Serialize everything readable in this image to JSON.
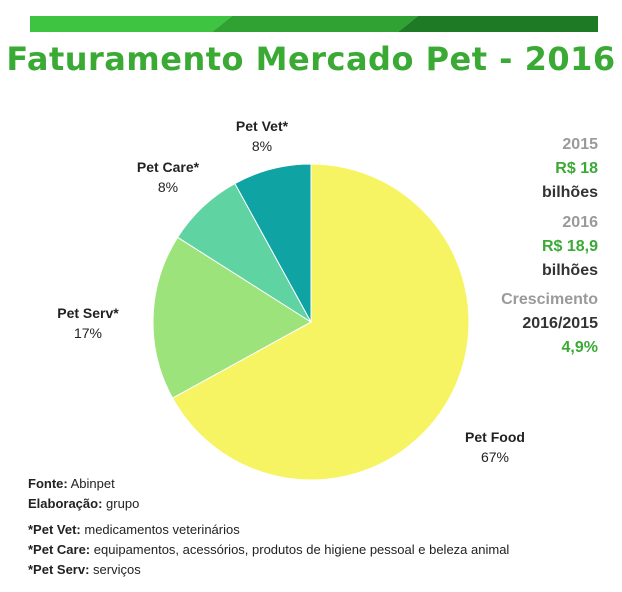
{
  "title": "Faturamento Mercado Pet - 2016",
  "colors": {
    "title": "#3aaa35",
    "banner": [
      "#3ec441",
      "#2fa233",
      "#1f7a26"
    ],
    "slices": [
      "#f7f464",
      "#9be37a",
      "#5fd3a1",
      "#0fa3a3"
    ]
  },
  "chart_data": {
    "type": "pie",
    "title": "Faturamento Mercado Pet - 2016",
    "slices": [
      {
        "label": "Pet Food",
        "value": 67,
        "display": "67%"
      },
      {
        "label": "Pet Serv*",
        "value": 17,
        "display": "17%"
      },
      {
        "label": "Pet Care*",
        "value": 8,
        "display": "8%"
      },
      {
        "label": "Pet Vet*",
        "value": 8,
        "display": "8%"
      }
    ]
  },
  "summary": {
    "year1": "2015",
    "value1": "R$ 18",
    "unit1": "bilhões",
    "year2": "2016",
    "value2": "R$ 18,9",
    "unit2": "bilhões",
    "growth_label": "Crescimento",
    "growth_period": "2016/2015",
    "growth_value": "4,9%"
  },
  "source": {
    "fonte_label": "Fonte:",
    "fonte_value": "Abinpet",
    "elab_label": "Elaboração:",
    "elab_value": "grupo"
  },
  "footnotes": [
    {
      "term": "*Pet Vet:",
      "text": "medicamentos veterinários"
    },
    {
      "term": "*Pet Care:",
      "text": "equipamentos, acessórios, produtos de higiene pessoal e beleza animal"
    },
    {
      "term": "*Pet Serv:",
      "text": "serviços"
    }
  ]
}
